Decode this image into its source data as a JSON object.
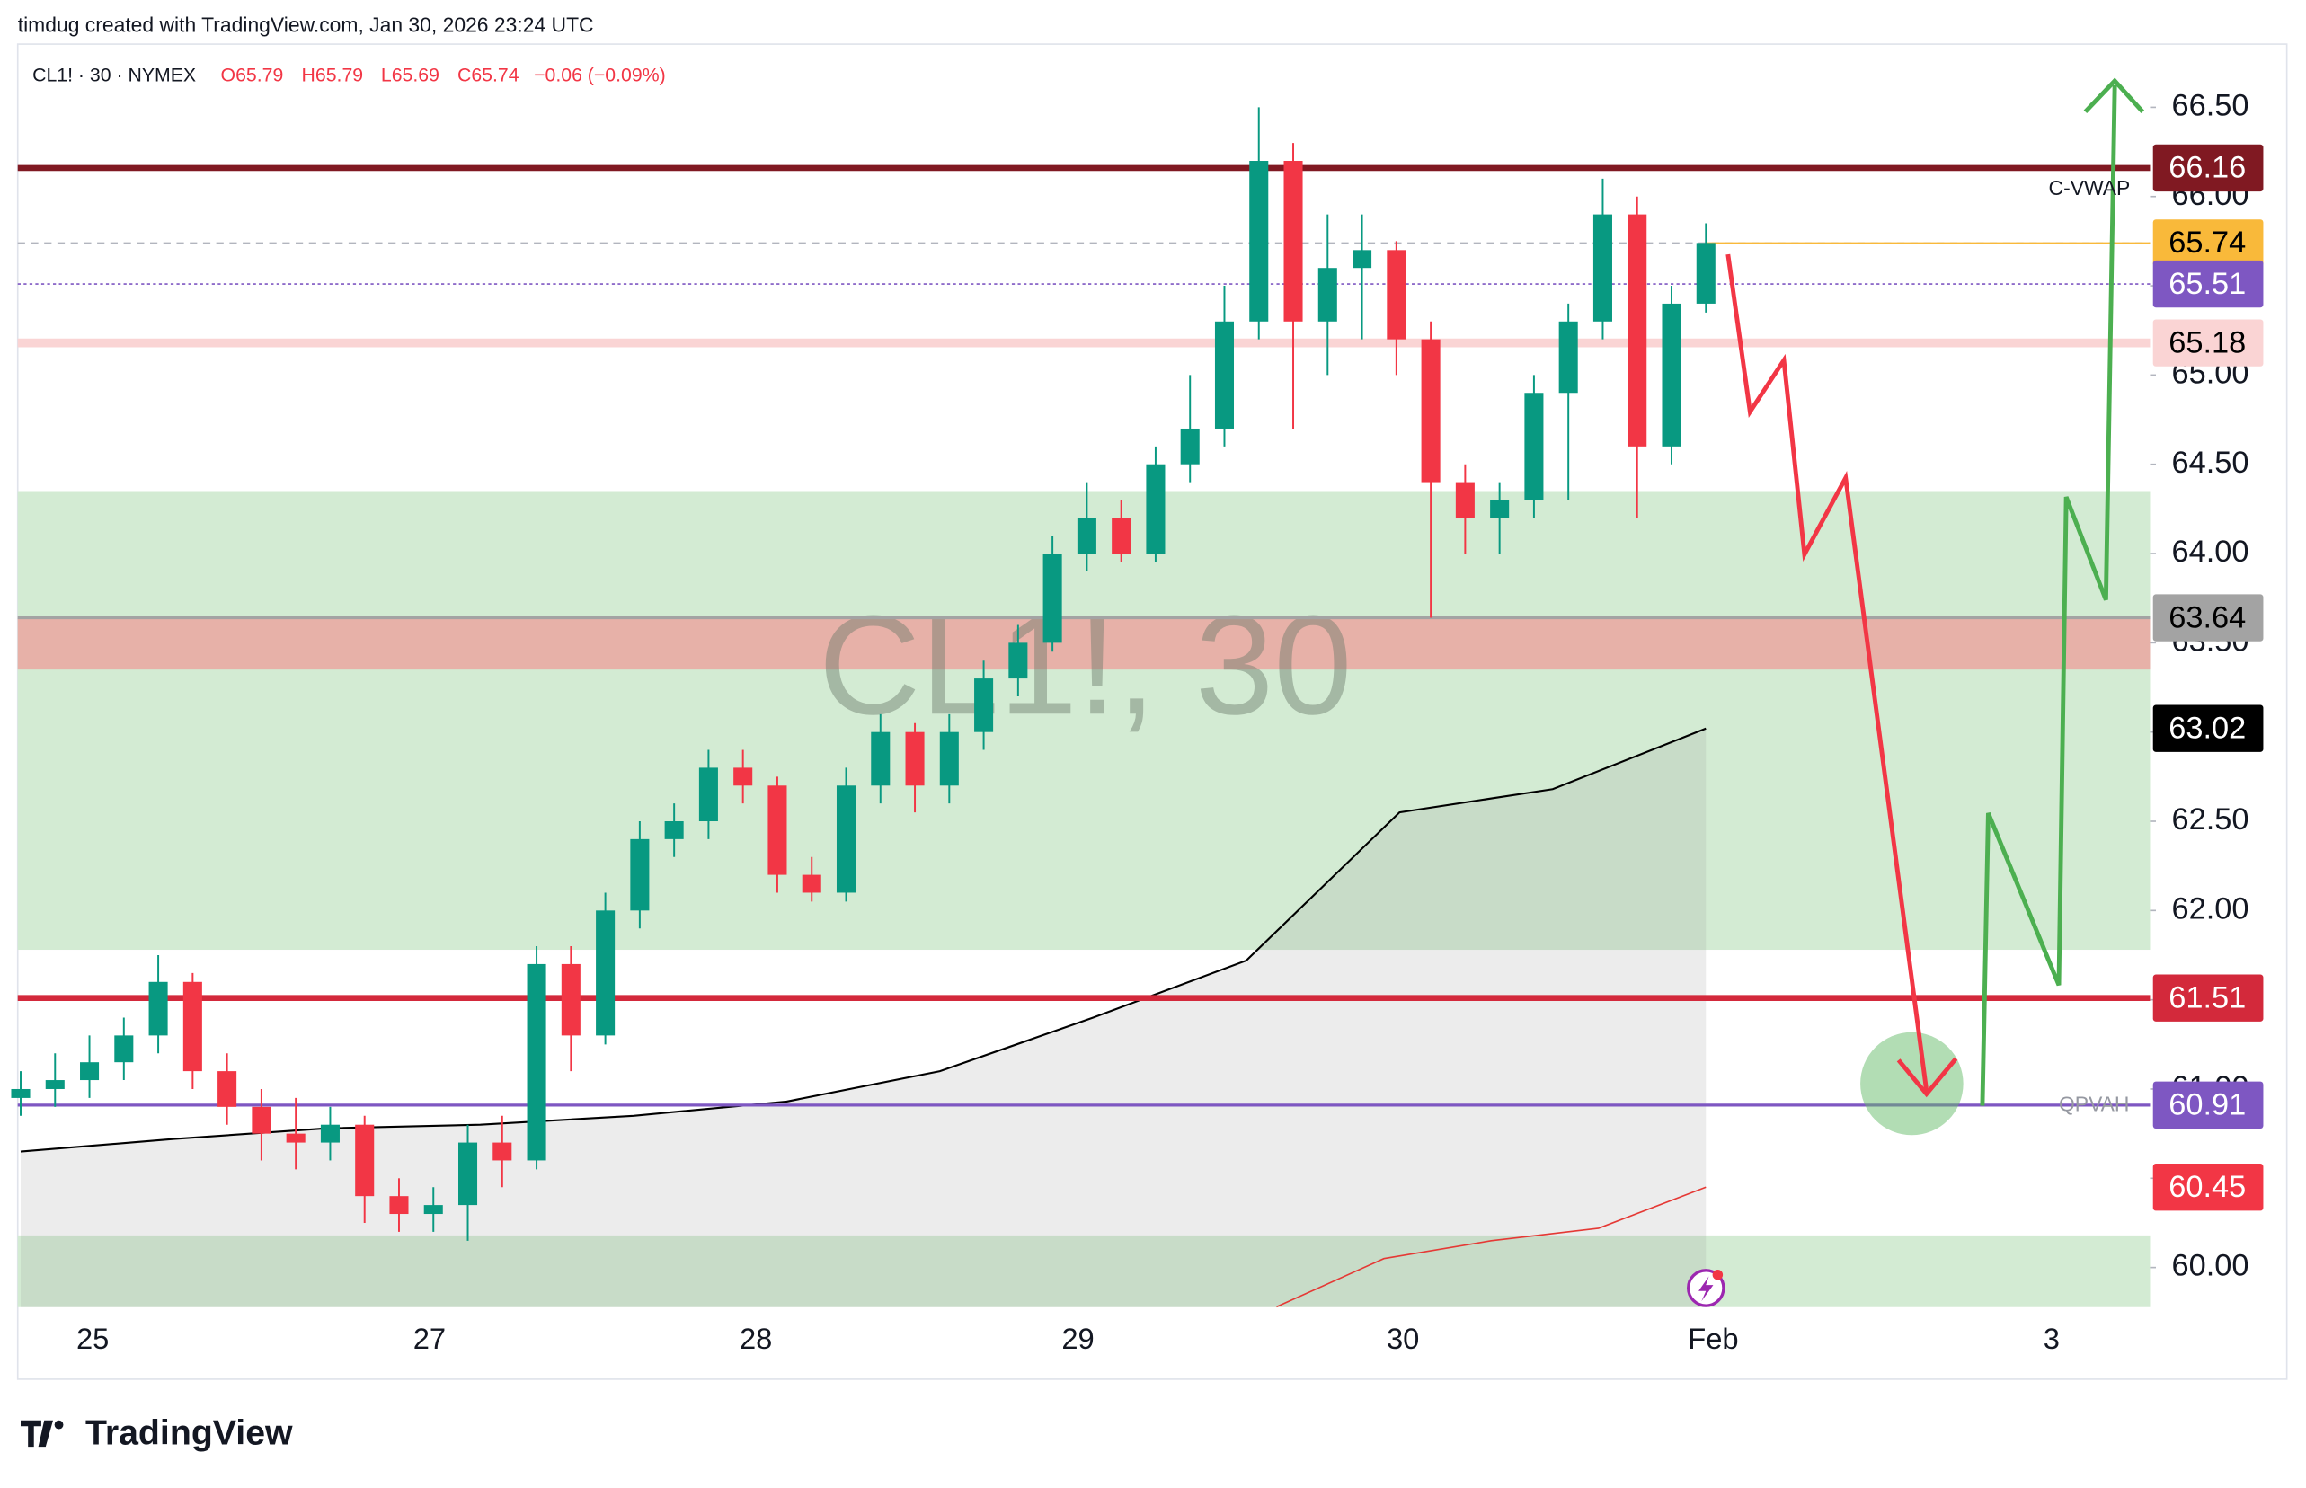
{
  "header": {
    "text": "timdug created with TradingView.com, Jan 30, 2026 23:24 UTC"
  },
  "chart_data": {
    "type": "candlestick",
    "watermark": "CL1!, 30",
    "legend": {
      "symbol": "CL1! · 30 · NYMEX",
      "open": "O65.79",
      "high": "H65.79",
      "low": "L65.69",
      "close": "C65.74",
      "change": "−0.06 (−0.09%)"
    },
    "ylim": [
      59.778,
      66.854
    ],
    "yticks": [
      {
        "value": 60,
        "label": "60.00"
      },
      {
        "value": 60.5,
        "label": "60.50"
      },
      {
        "value": 61,
        "label": "61.00"
      },
      {
        "value": 61.5,
        "label": "61.50"
      },
      {
        "value": 62,
        "label": "62.00"
      },
      {
        "value": 62.5,
        "label": "62.50"
      },
      {
        "value": 63,
        "label": "63.00"
      },
      {
        "value": 63.5,
        "label": "63.50"
      },
      {
        "value": 64,
        "label": "64.00"
      },
      {
        "value": 64.5,
        "label": "64.50"
      },
      {
        "value": 65,
        "label": "65.00"
      },
      {
        "value": 65.5,
        "label": "65.50"
      },
      {
        "value": 66,
        "label": "66.00"
      },
      {
        "value": 66.5,
        "label": "66.50"
      }
    ],
    "xtick_labels": [
      "25",
      "27",
      "28",
      "29",
      "30",
      "Feb",
      "3"
    ],
    "up_color": "#089981",
    "down_color": "#f23645",
    "candles": [
      [
        60.95,
        61.1,
        60.85,
        61.0
      ],
      [
        61.0,
        61.2,
        60.9,
        61.05
      ],
      [
        61.05,
        61.3,
        60.95,
        61.15
      ],
      [
        61.15,
        61.4,
        61.05,
        61.3
      ],
      [
        61.3,
        61.75,
        61.2,
        61.6
      ],
      [
        61.6,
        61.65,
        61.0,
        61.1
      ],
      [
        61.1,
        61.2,
        60.8,
        60.9
      ],
      [
        60.9,
        61.0,
        60.6,
        60.75
      ],
      [
        60.75,
        60.95,
        60.55,
        60.7
      ],
      [
        60.7,
        60.9,
        60.6,
        60.8
      ],
      [
        60.8,
        60.85,
        60.25,
        60.4
      ],
      [
        60.4,
        60.5,
        60.2,
        60.3
      ],
      [
        60.3,
        60.45,
        60.2,
        60.35
      ],
      [
        60.35,
        60.8,
        60.15,
        60.7
      ],
      [
        60.7,
        60.85,
        60.45,
        60.6
      ],
      [
        60.6,
        61.8,
        60.55,
        61.7
      ],
      [
        61.7,
        61.8,
        61.1,
        61.3
      ],
      [
        61.3,
        62.1,
        61.25,
        62.0
      ],
      [
        62.0,
        62.5,
        61.9,
        62.4
      ],
      [
        62.4,
        62.6,
        62.3,
        62.5
      ],
      [
        62.5,
        62.9,
        62.4,
        62.8
      ],
      [
        62.8,
        62.9,
        62.6,
        62.7
      ],
      [
        62.7,
        62.75,
        62.1,
        62.2
      ],
      [
        62.2,
        62.3,
        62.05,
        62.1
      ],
      [
        62.1,
        62.8,
        62.05,
        62.7
      ],
      [
        62.7,
        63.1,
        62.6,
        63.0
      ],
      [
        63.0,
        63.05,
        62.55,
        62.7
      ],
      [
        62.7,
        63.1,
        62.6,
        63.0
      ],
      [
        63.0,
        63.4,
        62.9,
        63.3
      ],
      [
        63.3,
        63.6,
        63.2,
        63.5
      ],
      [
        63.5,
        64.1,
        63.45,
        64.0
      ],
      [
        64.0,
        64.4,
        63.9,
        64.2
      ],
      [
        64.2,
        64.3,
        63.95,
        64.0
      ],
      [
        64.0,
        64.6,
        63.95,
        64.5
      ],
      [
        64.5,
        65.0,
        64.4,
        64.7
      ],
      [
        64.7,
        65.5,
        64.6,
        65.3
      ],
      [
        65.3,
        66.5,
        65.2,
        66.2
      ],
      [
        66.2,
        66.3,
        64.7,
        65.3
      ],
      [
        65.3,
        65.9,
        65.0,
        65.6
      ],
      [
        65.6,
        65.9,
        65.2,
        65.7
      ],
      [
        65.7,
        65.75,
        65.0,
        65.2
      ],
      [
        65.2,
        65.3,
        63.64,
        64.4
      ],
      [
        64.4,
        64.5,
        64.0,
        64.2
      ],
      [
        64.2,
        64.4,
        64.0,
        64.3
      ],
      [
        64.3,
        65.0,
        64.2,
        64.9
      ],
      [
        64.9,
        65.4,
        64.3,
        65.3
      ],
      [
        65.3,
        66.1,
        65.2,
        65.9
      ],
      [
        65.9,
        66.0,
        64.2,
        64.6
      ],
      [
        64.6,
        65.5,
        64.5,
        65.4
      ],
      [
        65.4,
        65.85,
        65.35,
        65.74
      ]
    ],
    "zones": [
      {
        "top": 64.35,
        "bottom": 61.78,
        "color": "#d3ebd3"
      },
      {
        "top": 63.64,
        "bottom": 63.35,
        "color": "#e7b1a8"
      },
      {
        "top": 60.18,
        "bottom": 59.778,
        "color": "#d3ebd3"
      }
    ],
    "vwap": {
      "name": "C-VWAP",
      "color": "#000000",
      "values": [
        60.65,
        60.72,
        60.78,
        60.8,
        60.85,
        60.93,
        61.1,
        61.4,
        61.72,
        62.55,
        62.68,
        63.02
      ]
    },
    "lower_band": {
      "color": "#e53935",
      "values": [
        59.78,
        60.05,
        60.15,
        60.22,
        60.45
      ]
    },
    "qpvah": {
      "name": "QPVAH"
    },
    "levels": [
      {
        "price": 66.16,
        "color": "#801922",
        "text": "#ffffff",
        "line": "solid",
        "width": 4
      },
      {
        "price": 65.74,
        "color": "#f9b93a",
        "text": "#000000",
        "line": "dashed",
        "width": 1
      },
      {
        "price": 65.51,
        "color": "#7e57c2",
        "text": "#ffffff",
        "line": "dotted",
        "width": 1
      },
      {
        "price": 65.18,
        "color": "#fad4d4",
        "text": "#000000",
        "line": "solid",
        "width": 6
      },
      {
        "price": 63.64,
        "color": "#a3a3a3",
        "text": "#000000",
        "line": "solid",
        "width": 2
      },
      {
        "price": 63.02,
        "color": "#000000",
        "text": "#ffffff",
        "line": "none",
        "width": 0
      },
      {
        "price": 61.51,
        "color": "#d3293b",
        "text": "#ffffff",
        "line": "solid",
        "width": 4
      },
      {
        "price": 60.91,
        "color": "#7e57c2",
        "text": "#ffffff",
        "line": "solid",
        "width": 2
      },
      {
        "price": 60.45,
        "color": "#f23645",
        "text": "#ffffff",
        "line": "none",
        "width": 0
      }
    ]
  },
  "footer": {
    "brand": "TradingView"
  }
}
